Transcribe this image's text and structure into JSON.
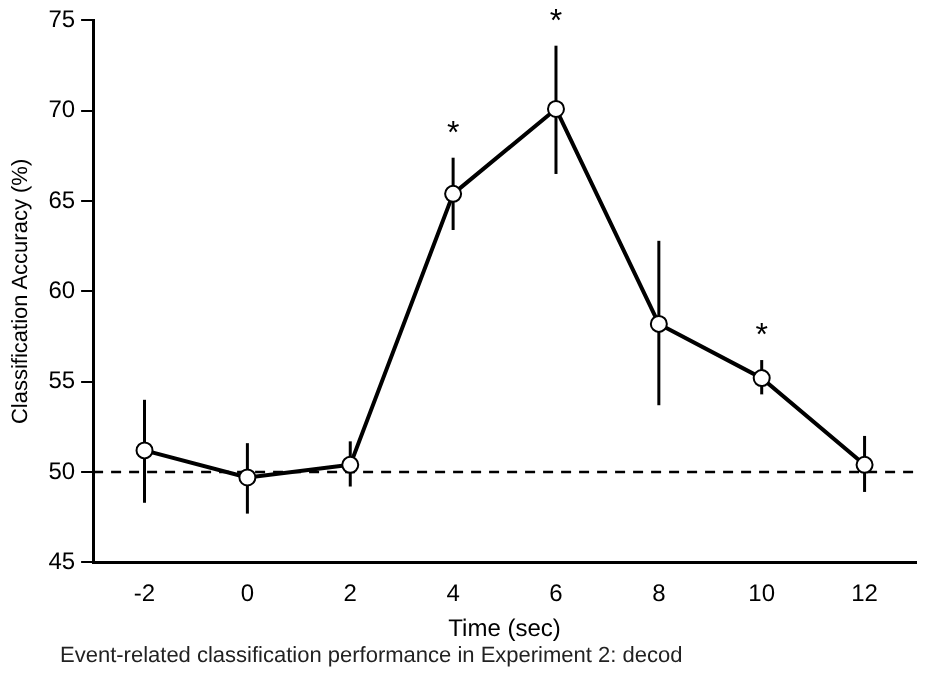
{
  "chart_data": {
    "type": "line",
    "xlabel": "Time (sec)",
    "ylabel": "Classification Accuracy (%)",
    "x": [
      -2,
      0,
      2,
      4,
      6,
      8,
      10,
      12
    ],
    "series": [
      {
        "color": "#000000",
        "values": [
          51.2,
          49.7,
          50.4,
          65.4,
          70.1,
          58.2,
          55.2,
          50.4
        ],
        "errors": [
          [
            48.3,
            54.0
          ],
          [
            47.7,
            51.6
          ],
          [
            49.2,
            51.7
          ],
          [
            63.4,
            67.4
          ],
          [
            66.5,
            73.6
          ],
          [
            53.7,
            62.8
          ],
          [
            54.3,
            56.2
          ],
          [
            48.9,
            52.0
          ]
        ]
      }
    ],
    "xlim": [
      -3,
      13
    ],
    "xticks": [
      -2,
      0,
      2,
      4,
      6,
      8,
      10,
      12
    ],
    "ylim": [
      45,
      75
    ],
    "yticks": [
      45,
      50,
      55,
      60,
      65,
      70,
      75
    ],
    "ref_lines": [
      {
        "axis": "y",
        "value": 50,
        "line_style": "dashed",
        "color": "#000000"
      }
    ],
    "annotations": [
      {
        "text": "*",
        "x": 4,
        "y": 65.4
      },
      {
        "text": "*",
        "x": 6,
        "y": 70.1
      },
      {
        "text": "*",
        "x": 10,
        "y": 55.2
      },
      "Event-related classification performance in Experiment 2: decod"
    ],
    "marker": "circle",
    "line_style": "solid",
    "grid": false,
    "legend": false
  }
}
